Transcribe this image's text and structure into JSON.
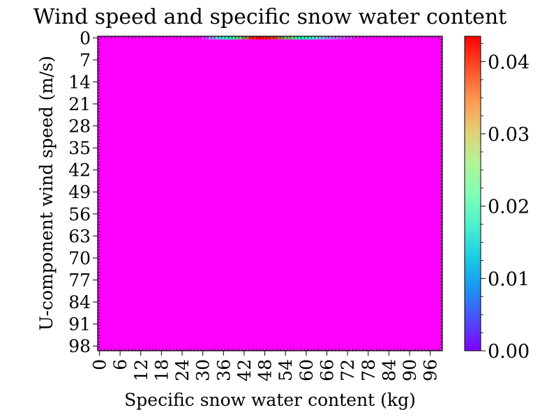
{
  "chart_data": {
    "type": "heatmap",
    "title": "Wind speed and specific snow water content",
    "xlabel": "Specific snow water content (kg)",
    "ylabel": "U-component wind speed (m/s)",
    "x_tick_labels": [
      "0",
      "6",
      "12",
      "18",
      "24",
      "30",
      "36",
      "42",
      "48",
      "54",
      "60",
      "66",
      "72",
      "78",
      "84",
      "90",
      "96"
    ],
    "y_tick_labels": [
      "0",
      "7",
      "14",
      "21",
      "28",
      "35",
      "42",
      "49",
      "56",
      "63",
      "70",
      "77",
      "84",
      "91",
      "98"
    ],
    "x_range": [
      0,
      100
    ],
    "y_range": [
      0,
      100
    ],
    "colormap": "rainbow",
    "background_value": 0.0,
    "hot_row": {
      "y": 0,
      "x": [
        30,
        32,
        34,
        36,
        38,
        40,
        42,
        44,
        46,
        48,
        50,
        52,
        54,
        56,
        58,
        60,
        62,
        64,
        66,
        68,
        70,
        72,
        74
      ],
      "values": [
        0.003,
        0.008,
        0.013,
        0.018,
        0.024,
        0.03,
        0.036,
        0.041,
        0.043,
        0.042,
        0.04,
        0.036,
        0.032,
        0.028,
        0.023,
        0.019,
        0.015,
        0.012,
        0.009,
        0.007,
        0.005,
        0.003,
        0.001
      ]
    },
    "colorbar": {
      "min": 0.0,
      "max": 0.0435,
      "tick_values": [
        0.0,
        0.01,
        0.02,
        0.03,
        0.04
      ],
      "tick_labels": [
        "0.00",
        "0.01",
        "0.02",
        "0.03",
        "0.04"
      ]
    },
    "grid": false
  }
}
